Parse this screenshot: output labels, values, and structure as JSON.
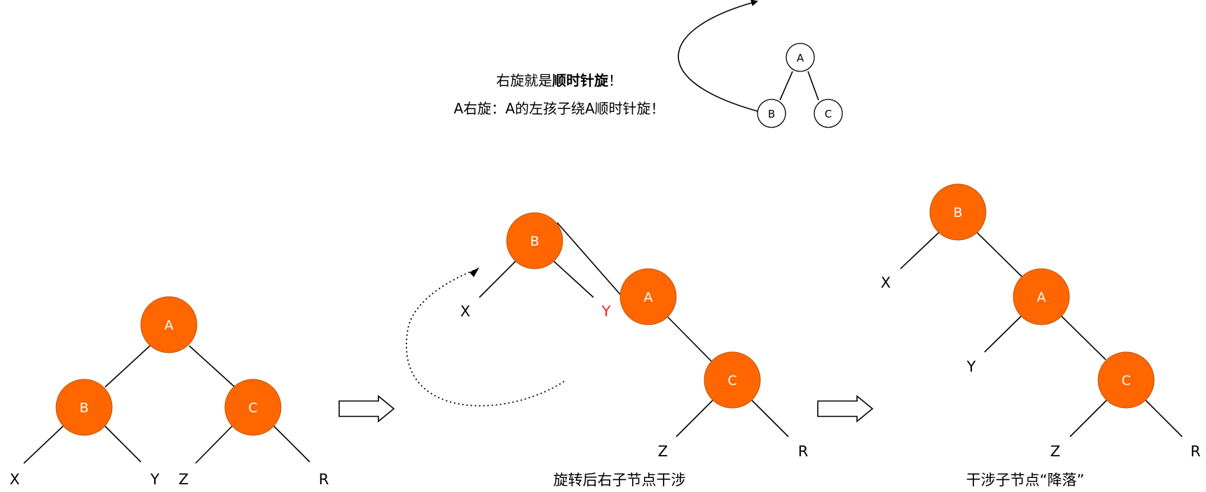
{
  "intro": {
    "line1_prefix": "右旋就是",
    "line1_bold": "顺时针旋",
    "line1_suffix": "！",
    "line2": "A右旋：A的左孩子绕A顺时针旋！"
  },
  "mini_tree": {
    "a": "A",
    "b": "B",
    "c": "C"
  },
  "tree1": {
    "a": "A",
    "b": "B",
    "c": "C",
    "x": "X",
    "y": "Y",
    "z": "Z",
    "r": "R"
  },
  "tree2": {
    "b": "B",
    "a": "A",
    "c": "C",
    "x": "X",
    "y": "Y",
    "z": "Z",
    "r": "R",
    "caption": "旋转后右子节点干涉"
  },
  "tree3": {
    "b": "B",
    "a": "A",
    "c": "C",
    "x": "X",
    "y": "Y",
    "z": "Z",
    "r": "R",
    "caption": "干涉子节点“降落”"
  },
  "colors": {
    "node_fill": "#ff6600",
    "node_text": "#ffffff",
    "highlight": "#ff2020"
  }
}
